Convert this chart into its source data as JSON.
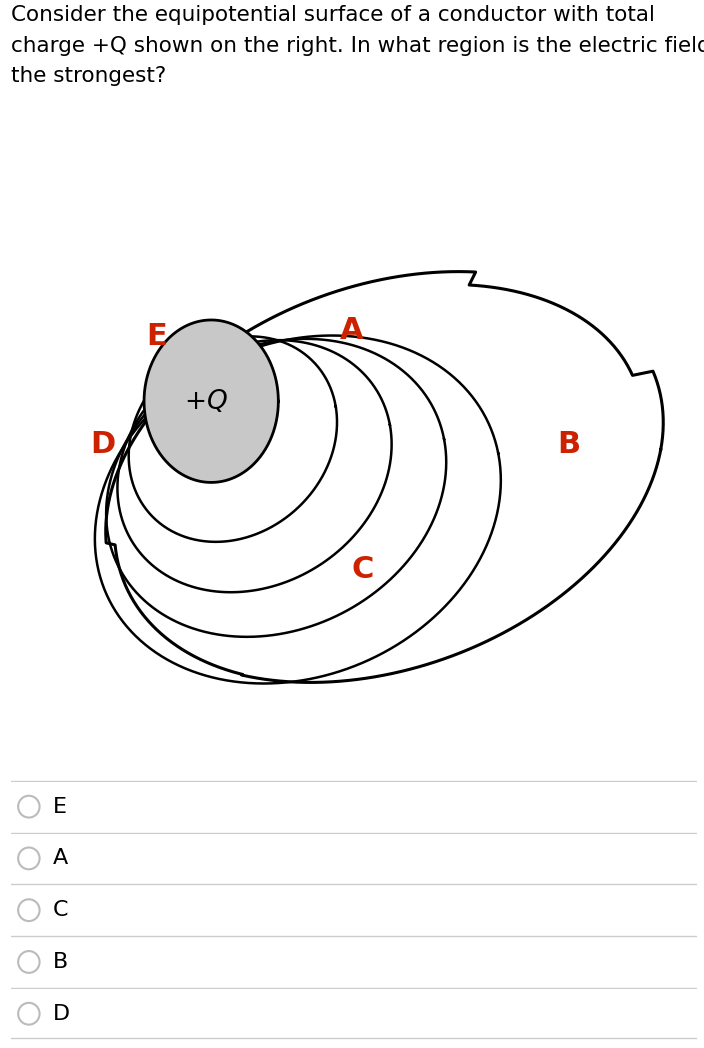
{
  "title_text": "Consider the equipotential surface of a conductor with total\ncharge +Q shown on the right. In what region is the electric field\nthe strongest?",
  "title_fontsize": 15.5,
  "title_color": "#000000",
  "background_color": "#ffffff",
  "label_color": "#cc2200",
  "options": [
    "E",
    "A",
    "C",
    "B",
    "D"
  ],
  "option_label_color": "#000000",
  "radio_color": "#aaaaaa",
  "divider_color": "#cccccc"
}
